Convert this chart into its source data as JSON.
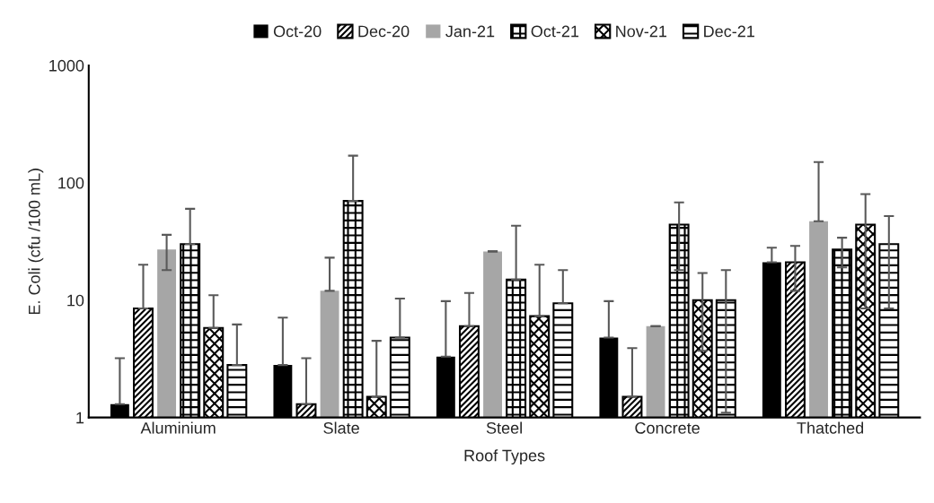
{
  "chart_data": {
    "type": "bar",
    "xlabel": "Roof Types",
    "ylabel": "E. Coli (cfu /100 mL)",
    "categories": [
      "Aluminium",
      "Slate",
      "Steel",
      "Concrete",
      "Thatched"
    ],
    "log": "y",
    "ylim": [
      1,
      1000
    ],
    "yticks": [
      1,
      10,
      100,
      1000
    ],
    "grid": false,
    "legend": "top",
    "series": [
      {
        "name": "Oct-20",
        "color": "#000000",
        "values": [
          1.3,
          2.8,
          3.3,
          4.8,
          21
        ],
        "errors": [
          [
            1.3,
            3.2
          ],
          [
            2.8,
            7.1
          ],
          [
            3.3,
            9.8
          ],
          [
            4.8,
            9.8
          ],
          [
            21,
            28
          ]
        ]
      },
      {
        "name": "Dec-20",
        "color": "#000000",
        "values": [
          8.5,
          1.3,
          6,
          1.5,
          21
        ],
        "errors": [
          [
            8.5,
            20
          ],
          [
            1.3,
            3.2
          ],
          [
            6,
            11.5
          ],
          [
            1.5,
            3.9
          ],
          [
            12,
            29
          ]
        ]
      },
      {
        "name": "Jan-21",
        "color": "#a6a6a6",
        "values": [
          27,
          12,
          26,
          6,
          47
        ],
        "errors": [
          [
            18,
            36
          ],
          [
            12,
            23
          ],
          [
            26,
            26
          ],
          [
            6,
            6
          ],
          [
            47,
            150
          ]
        ]
      },
      {
        "name": "Oct-21",
        "color": "#000000",
        "values": [
          30,
          70,
          15,
          44,
          27
        ],
        "errors": [
          [
            30,
            60
          ],
          [
            70,
            170
          ],
          [
            15,
            43
          ],
          [
            18,
            68
          ],
          [
            19,
            34
          ]
        ]
      },
      {
        "name": "Nov-21",
        "color": "#000000",
        "values": [
          5.8,
          1.5,
          7.3,
          10,
          44
        ],
        "errors": [
          [
            5.8,
            11
          ],
          [
            1.5,
            4.5
          ],
          [
            7.3,
            20
          ],
          [
            3.7,
            17
          ],
          [
            8.5,
            80
          ]
        ]
      },
      {
        "name": "Dec-21",
        "color": "#000000",
        "values": [
          2.8,
          4.8,
          9.4,
          10,
          30
        ],
        "errors": [
          [
            2.8,
            6.2
          ],
          [
            4.8,
            10.3
          ],
          [
            9.4,
            18
          ],
          [
            1.1,
            18
          ],
          [
            8.5,
            52
          ]
        ]
      }
    ]
  }
}
